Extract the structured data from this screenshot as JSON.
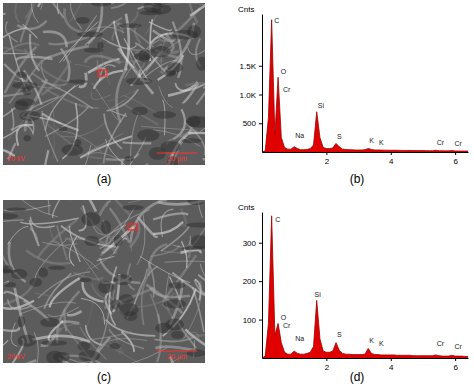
{
  "images": [
    {
      "label": "(a)",
      "voltage": "20 kV",
      "scale_bar": "20 µm"
    },
    {
      "label": "(c)",
      "voltage": "20 kV",
      "scale_bar": "20 µm"
    }
  ],
  "chart_data": [
    {
      "type": "area",
      "title": "(b)",
      "y_label": "Cnts",
      "color": "#e00000",
      "x": [
        0,
        0.1,
        0.2,
        0.3,
        0.4,
        0.5,
        0.6,
        0.7,
        0.8,
        0.9,
        1.0,
        1.1,
        1.2,
        1.3,
        1.4,
        1.5,
        1.6,
        1.7,
        1.8,
        1.9,
        2.0,
        2.1,
        2.2,
        2.3,
        2.4,
        2.5,
        2.6,
        2.7,
        2.8,
        2.9,
        3.0,
        3.1,
        3.2,
        3.3,
        3.4,
        3.5,
        3.6,
        3.7,
        3.8,
        3.9,
        4.0,
        4.1,
        4.2,
        4.3,
        4.4,
        4.5,
        4.6,
        4.7,
        4.8,
        4.9,
        5.0,
        5.1,
        5.2,
        5.3,
        5.4,
        5.5,
        5.6,
        5.7,
        5.8,
        5.9,
        6.0,
        6.1,
        6.2,
        6.3,
        6.4
      ],
      "values": [
        0,
        20,
        600,
        2300,
        300,
        1300,
        250,
        80,
        50,
        50,
        90,
        60,
        40,
        40,
        45,
        60,
        120,
        700,
        250,
        80,
        60,
        60,
        70,
        150,
        90,
        50,
        45,
        40,
        38,
        35,
        35,
        35,
        40,
        60,
        45,
        35,
        35,
        33,
        32,
        31,
        30,
        30,
        29,
        28,
        27,
        27,
        26,
        25,
        25,
        24,
        24,
        23,
        23,
        22,
        30,
        22,
        21,
        20,
        20,
        25,
        19,
        18,
        18,
        17,
        16
      ],
      "xlim": [
        0,
        6.4
      ],
      "xticks": [
        2,
        4,
        6
      ],
      "ylim": [
        0,
        2400
      ],
      "yticks": [
        {
          "value": 500,
          "label": "500"
        },
        {
          "value": 1000,
          "label": "1.0K"
        },
        {
          "value": 1500,
          "label": "1.5K"
        }
      ],
      "annotations": [
        {
          "text": "C",
          "x": 0.35,
          "y": 2250
        },
        {
          "text": "O",
          "x": 0.55,
          "y": 1350
        },
        {
          "text": "Cr",
          "x": 0.62,
          "y": 1050
        },
        {
          "text": "Na",
          "x": 1.0,
          "y": 250
        },
        {
          "text": "Si",
          "x": 1.7,
          "y": 760
        },
        {
          "text": "S",
          "x": 2.3,
          "y": 230
        },
        {
          "text": "K",
          "x": 3.3,
          "y": 160
        },
        {
          "text": "K",
          "x": 3.6,
          "y": 120
        },
        {
          "text": "Cr",
          "x": 5.4,
          "y": 130
        },
        {
          "text": "Cr",
          "x": 5.95,
          "y": 110
        }
      ]
    },
    {
      "type": "area",
      "title": "(d)",
      "y_label": "Cnts",
      "color": "#e00000",
      "x": [
        0,
        0.1,
        0.2,
        0.3,
        0.4,
        0.5,
        0.6,
        0.7,
        0.8,
        0.9,
        1.0,
        1.1,
        1.2,
        1.3,
        1.4,
        1.5,
        1.6,
        1.7,
        1.8,
        1.9,
        2.0,
        2.1,
        2.2,
        2.3,
        2.4,
        2.5,
        2.6,
        2.7,
        2.8,
        2.9,
        3.0,
        3.1,
        3.2,
        3.3,
        3.4,
        3.5,
        3.6,
        3.7,
        3.8,
        3.9,
        4.0,
        4.1,
        4.2,
        4.3,
        4.4,
        4.5,
        4.6,
        4.7,
        4.8,
        4.9,
        5.0,
        5.1,
        5.2,
        5.3,
        5.4,
        5.5,
        5.6,
        5.7,
        5.8,
        5.9,
        6.0,
        6.1,
        6.2,
        6.3,
        6.4
      ],
      "values": [
        0,
        5,
        90,
        370,
        60,
        90,
        40,
        15,
        10,
        10,
        18,
        12,
        10,
        10,
        12,
        15,
        30,
        150,
        50,
        18,
        15,
        15,
        18,
        40,
        20,
        12,
        10,
        10,
        9,
        9,
        9,
        9,
        10,
        25,
        12,
        9,
        9,
        8,
        8,
        8,
        8,
        8,
        7,
        7,
        7,
        7,
        7,
        6,
        6,
        6,
        6,
        6,
        6,
        6,
        8,
        6,
        5,
        5,
        5,
        7,
        5,
        5,
        5,
        4,
        4
      ],
      "xlim": [
        0,
        6.4
      ],
      "xticks": [
        2,
        4,
        6
      ],
      "ylim": [
        0,
        380
      ],
      "yticks": [
        100,
        200,
        300
      ],
      "annotations": [
        {
          "text": "C",
          "x": 0.38,
          "y": 355
        },
        {
          "text": "O",
          "x": 0.55,
          "y": 100
        },
        {
          "text": "Cr",
          "x": 0.62,
          "y": 78
        },
        {
          "text": "Na",
          "x": 1.0,
          "y": 45
        },
        {
          "text": "Si",
          "x": 1.6,
          "y": 160
        },
        {
          "text": "S",
          "x": 2.3,
          "y": 55
        },
        {
          "text": "K",
          "x": 3.3,
          "y": 40
        },
        {
          "text": "K",
          "x": 3.6,
          "y": 30
        },
        {
          "text": "Cr",
          "x": 5.4,
          "y": 30
        },
        {
          "text": "Cr",
          "x": 5.95,
          "y": 24
        }
      ]
    }
  ]
}
